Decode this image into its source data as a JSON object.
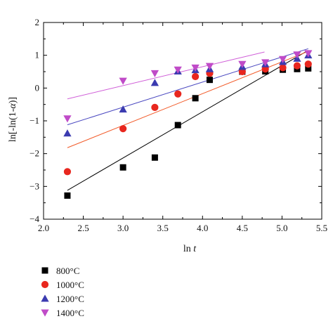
{
  "chart_data": {
    "type": "scatter",
    "xlabel_main": "ln ",
    "xlabel_italic": "t",
    "ylabel_pre": "ln[-ln(1-",
    "ylabel_italic": "α",
    "ylabel_post": ")]",
    "xlim": [
      2.0,
      5.5
    ],
    "ylim": [
      -4,
      2
    ],
    "xticks": [
      2.0,
      2.5,
      3.0,
      3.5,
      4.0,
      4.5,
      5.0,
      5.5
    ],
    "xtick_labels": [
      "2.0",
      "2.5",
      "3.0",
      "3.5",
      "4.0",
      "4.5",
      "5.0",
      "5.5"
    ],
    "yticks": [
      -4,
      -3,
      -2,
      -1,
      0,
      1,
      2
    ],
    "ytick_labels": [
      "−4",
      "−3",
      "−2",
      "−1",
      "0",
      "1",
      "2"
    ],
    "grid": false,
    "legend_position": "bottom-left, below plot",
    "series": [
      {
        "name": "800°C",
        "marker": "square",
        "color": "#000000",
        "line_color": "#000000",
        "x": [
          2.3,
          3.0,
          3.4,
          3.69,
          3.91,
          4.09,
          4.5,
          4.79,
          5.01,
          5.19,
          5.33
        ],
        "y": [
          -3.28,
          -2.42,
          -2.12,
          -1.13,
          -0.31,
          0.25,
          0.5,
          0.51,
          0.56,
          0.58,
          0.6
        ],
        "fit": [
          [
            2.3,
            -3.12
          ],
          [
            5.33,
            1.15
          ]
        ]
      },
      {
        "name": "1000°C",
        "marker": "circle",
        "color": "#e8271e",
        "line_color": "#f25a28",
        "x": [
          2.3,
          3.0,
          3.4,
          3.69,
          3.91,
          4.09,
          4.5,
          4.79,
          5.01,
          5.19,
          5.33
        ],
        "y": [
          -2.55,
          -1.24,
          -0.59,
          -0.18,
          0.35,
          0.45,
          0.5,
          0.58,
          0.62,
          0.68,
          0.73
        ],
        "fit": [
          [
            2.3,
            -1.82
          ],
          [
            5.33,
            1.12
          ]
        ]
      },
      {
        "name": "1200°C",
        "marker": "triangle-up",
        "color": "#3b3bb0",
        "line_color": "#4a48c0",
        "x": [
          2.3,
          3.0,
          3.4,
          3.69,
          3.91,
          4.09,
          4.5,
          4.79,
          5.01,
          5.19,
          5.33
        ],
        "y": [
          -1.38,
          -0.65,
          0.16,
          0.51,
          0.55,
          0.58,
          0.65,
          0.73,
          0.8,
          0.9,
          1.0
        ],
        "fit": [
          [
            2.3,
            -1.12
          ],
          [
            5.33,
            1.2
          ]
        ]
      },
      {
        "name": "1400°C",
        "marker": "triangle-down",
        "color": "#c04bc8",
        "line_color": "#d05fd8",
        "x": [
          2.3,
          3.0,
          3.4,
          3.69,
          3.91,
          4.09,
          4.5,
          4.79,
          5.01,
          5.19,
          5.33
        ],
        "y": [
          -0.93,
          0.22,
          0.45,
          0.56,
          0.62,
          0.67,
          0.73,
          0.78,
          0.88,
          1.02,
          1.06
        ],
        "fit": [
          [
            2.3,
            -0.33
          ],
          [
            4.78,
            1.1
          ]
        ]
      }
    ]
  }
}
